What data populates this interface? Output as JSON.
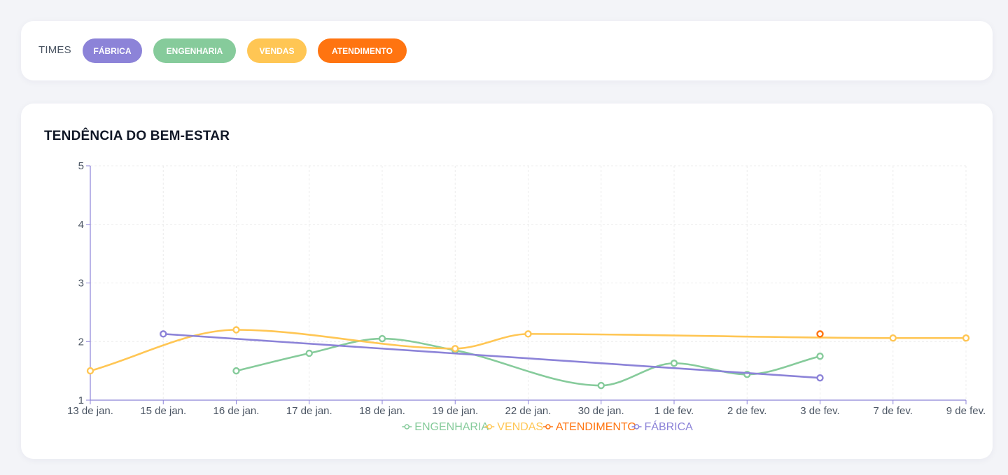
{
  "filters": {
    "label": "TIMES",
    "teams": [
      {
        "label": "FÁBRICA",
        "color": "#8c83d8"
      },
      {
        "label": "ENGENHARIA",
        "color": "#86cb9b"
      },
      {
        "label": "VENDAS",
        "color": "#ffc654"
      },
      {
        "label": "ATENDIMENTO",
        "color": "#ff7410"
      }
    ]
  },
  "chart": {
    "title": "TENDÊNCIA DO BEM-ESTAR"
  },
  "chart_data": {
    "type": "line",
    "title": "TENDÊNCIA DO BEM-ESTAR",
    "xlabel": "",
    "ylabel": "",
    "categories": [
      "13 de jan.",
      "15 de jan.",
      "16 de jan.",
      "17 de jan.",
      "18 de jan.",
      "19 de jan.",
      "22 de jan.",
      "30 de jan.",
      "1 de fev.",
      "2 de fev.",
      "3 de fev.",
      "7 de fev.",
      "9 de fev."
    ],
    "yticks": [
      "1",
      "2",
      "3",
      "4",
      "5"
    ],
    "ylim": [
      1,
      5
    ],
    "grid": true,
    "legend_position": "bottom",
    "series": [
      {
        "name": "ENGENHARIA",
        "color": "#86cb9b",
        "curve": "smooth",
        "values": [
          null,
          null,
          1.5,
          1.8,
          2.05,
          1.85,
          null,
          1.25,
          1.63,
          1.44,
          1.75,
          null,
          null
        ]
      },
      {
        "name": "VENDAS",
        "color": "#ffc654",
        "curve": "smooth",
        "values": [
          1.5,
          null,
          2.2,
          null,
          null,
          1.88,
          2.13,
          null,
          null,
          null,
          null,
          2.06,
          2.06
        ]
      },
      {
        "name": "ATENDIMENTO",
        "color": "#ff7410",
        "curve": "smooth",
        "values": [
          null,
          null,
          null,
          null,
          null,
          null,
          null,
          null,
          null,
          null,
          2.13,
          null,
          null
        ]
      },
      {
        "name": "FÁBRICA",
        "color": "#8c83d8",
        "curve": "straight",
        "values": [
          null,
          2.13,
          null,
          null,
          null,
          null,
          null,
          null,
          null,
          null,
          1.38,
          null,
          null
        ]
      }
    ]
  }
}
